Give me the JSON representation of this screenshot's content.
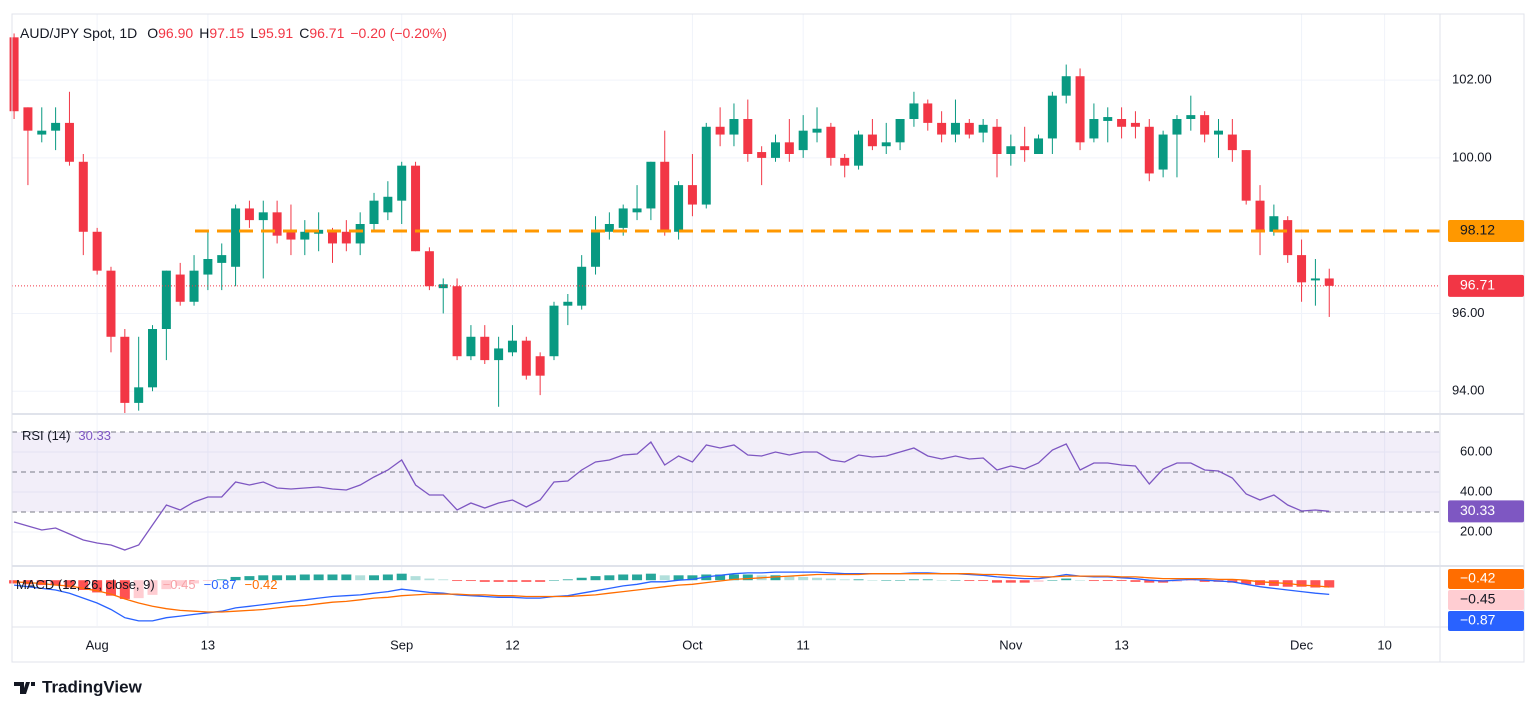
{
  "header": {
    "title": "AUD/JPY Spot, 1D",
    "ohlc": [
      {
        "key": "O",
        "value": "96.90"
      },
      {
        "key": "H",
        "value": "97.15"
      },
      {
        "key": "L",
        "value": "95.91"
      },
      {
        "key": "C",
        "value": "96.71"
      }
    ],
    "change": "−0.20 (−0.20%)"
  },
  "footer": {
    "brand": "TradingView"
  },
  "chart_data": [
    {
      "type": "candlestick",
      "xlim": [
        -0.15,
        103
      ],
      "ylim": [
        93.44,
        103.7
      ],
      "up_color": "#089981",
      "down_color": "#f23645",
      "grid": true,
      "open": [
        103.1,
        101.3,
        100.6,
        100.7,
        100.9,
        99.9,
        98.1,
        97.1,
        95.4,
        93.7,
        94.1,
        95.6,
        97.0,
        96.3,
        97.0,
        97.3,
        97.2,
        98.7,
        98.4,
        98.6,
        98.1,
        97.9,
        98.05,
        98.1,
        98.1,
        97.8,
        98.3,
        98.6,
        98.9,
        99.8,
        97.6,
        96.65,
        96.7,
        94.9,
        95.4,
        94.8,
        95.0,
        95.3,
        94.9,
        94.9,
        96.2,
        96.2,
        97.2,
        98.1,
        98.2,
        98.6,
        98.7,
        99.9,
        98.1,
        99.3,
        98.8,
        100.8,
        100.6,
        101.0,
        100.15,
        100.0,
        100.4,
        100.2,
        100.65,
        100.8,
        100.0,
        99.8,
        100.6,
        100.3,
        100.4,
        101.0,
        101.4,
        100.9,
        100.6,
        100.9,
        100.65,
        100.8,
        100.1,
        100.3,
        100.1,
        100.5,
        101.6,
        102.1,
        100.5,
        100.95,
        101.0,
        100.9,
        100.8,
        99.7,
        100.6,
        101.0,
        101.1,
        100.6,
        100.6,
        100.2,
        98.9,
        98.1,
        98.4,
        97.5,
        96.85,
        96.9
      ],
      "high": [
        103.2,
        101.3,
        101.3,
        101.3,
        101.7,
        100.1,
        98.2,
        97.2,
        95.6,
        95.4,
        95.7,
        97.1,
        97.3,
        97.5,
        98.1,
        97.8,
        98.8,
        98.9,
        98.9,
        98.9,
        98.8,
        98.4,
        98.6,
        98.2,
        98.4,
        98.6,
        99.1,
        99.4,
        99.9,
        99.9,
        97.7,
        96.9,
        96.9,
        95.7,
        95.7,
        95.4,
        95.7,
        95.4,
        95.0,
        96.3,
        96.5,
        97.5,
        98.5,
        98.6,
        98.8,
        99.3,
        99.9,
        100.7,
        99.4,
        100.1,
        100.9,
        101.3,
        101.4,
        101.5,
        100.3,
        100.6,
        101.0,
        101.1,
        101.3,
        100.9,
        100.1,
        100.7,
        101.0,
        100.9,
        101.0,
        101.7,
        101.5,
        101.2,
        101.5,
        101.0,
        101.0,
        101.0,
        100.6,
        100.8,
        100.6,
        101.7,
        102.4,
        102.3,
        101.4,
        101.3,
        101.3,
        101.2,
        101.0,
        100.7,
        101.1,
        101.6,
        101.2,
        101.0,
        101.0,
        100.2,
        99.3,
        98.8,
        98.5,
        97.9,
        97.4,
        97.15
      ],
      "low": [
        101.0,
        99.3,
        100.4,
        100.2,
        99.8,
        97.5,
        97.0,
        95.0,
        93.4,
        93.5,
        94.0,
        94.8,
        96.2,
        96.2,
        96.6,
        96.6,
        96.7,
        98.2,
        96.9,
        97.8,
        97.5,
        97.5,
        97.6,
        97.3,
        97.6,
        97.5,
        98.1,
        98.4,
        98.3,
        97.6,
        96.6,
        96.0,
        94.8,
        94.8,
        94.7,
        93.6,
        94.9,
        94.3,
        93.9,
        94.8,
        95.7,
        96.1,
        97.0,
        97.9,
        98.0,
        98.4,
        98.4,
        98.0,
        97.9,
        98.5,
        98.7,
        100.3,
        100.3,
        99.9,
        99.3,
        99.9,
        99.9,
        100.0,
        100.4,
        99.8,
        99.5,
        99.7,
        100.2,
        100.1,
        100.2,
        100.8,
        100.7,
        100.4,
        100.4,
        100.5,
        100.4,
        99.5,
        99.8,
        99.9,
        100.1,
        100.1,
        101.4,
        100.2,
        100.4,
        100.4,
        100.5,
        100.5,
        99.4,
        99.5,
        99.5,
        100.7,
        100.4,
        100.0,
        99.9,
        98.8,
        97.5,
        98.0,
        97.3,
        96.3,
        96.2,
        95.91
      ],
      "close": [
        101.2,
        100.7,
        100.7,
        100.9,
        99.9,
        98.1,
        97.1,
        95.4,
        93.7,
        94.1,
        95.6,
        97.1,
        96.3,
        97.1,
        97.4,
        97.5,
        98.7,
        98.4,
        98.6,
        98.0,
        97.9,
        98.1,
        98.15,
        97.8,
        97.8,
        98.3,
        98.9,
        99.0,
        99.8,
        97.6,
        96.7,
        96.75,
        94.9,
        95.4,
        94.8,
        95.1,
        95.3,
        94.4,
        94.4,
        96.2,
        96.3,
        97.2,
        98.1,
        98.3,
        98.7,
        98.7,
        99.9,
        98.1,
        99.3,
        98.8,
        100.8,
        100.6,
        101.0,
        100.1,
        100.0,
        100.4,
        100.1,
        100.7,
        100.75,
        100.0,
        99.8,
        100.6,
        100.3,
        100.4,
        101.0,
        101.4,
        100.9,
        100.6,
        100.9,
        100.6,
        100.85,
        100.1,
        100.3,
        100.2,
        100.5,
        101.6,
        102.1,
        100.4,
        101.0,
        101.05,
        100.8,
        100.8,
        99.6,
        100.6,
        101.0,
        101.1,
        100.6,
        100.7,
        100.2,
        98.9,
        98.1,
        98.5,
        97.5,
        96.8,
        96.9,
        96.71
      ],
      "yticks": [
        {
          "value": 94,
          "label": "94.00"
        },
        {
          "value": 96,
          "label": "96.00"
        },
        {
          "value": 100,
          "label": "100.00"
        },
        {
          "value": 102,
          "label": "102.00"
        }
      ],
      "xticks": [
        {
          "value": 6,
          "label": "Aug"
        },
        {
          "value": 14,
          "label": "13"
        },
        {
          "value": 28,
          "label": "Sep"
        },
        {
          "value": 36,
          "label": "12"
        },
        {
          "value": 49,
          "label": "Oct"
        },
        {
          "value": 57,
          "label": "11"
        },
        {
          "value": 72,
          "label": "Nov"
        },
        {
          "value": 80,
          "label": "13"
        },
        {
          "value": 93,
          "label": "Dec"
        },
        {
          "value": 99,
          "label": "10"
        }
      ],
      "level_line": {
        "value": 98.12,
        "label": "98.12",
        "color": "#ff9800"
      },
      "last_price": {
        "value": 96.71,
        "label": "96.71"
      }
    },
    {
      "type": "line",
      "name": "RSI (14)",
      "color": "#7e57c2",
      "ylim": [
        3.5,
        78.5
      ],
      "values": [
        25,
        23,
        21,
        22,
        19,
        16,
        14.5,
        13.5,
        11,
        13.5,
        23.5,
        33.5,
        31,
        35,
        37.5,
        37.5,
        45,
        43.5,
        45,
        42,
        41.5,
        42,
        42.5,
        41.5,
        41,
        43.5,
        47.5,
        51,
        56,
        43.5,
        38.5,
        38.5,
        31,
        34.5,
        32,
        34.5,
        36,
        32.5,
        36,
        45,
        45.5,
        51,
        55,
        56,
        58.5,
        59,
        65,
        53.5,
        58,
        55,
        63.5,
        62,
        63.5,
        58.5,
        58,
        60,
        58.5,
        60,
        60,
        56,
        55,
        58.5,
        57.5,
        58,
        60,
        62,
        58,
        56.5,
        58,
        56.5,
        57,
        51,
        53,
        51.5,
        54.5,
        61,
        64,
        51,
        54.5,
        54.5,
        53.5,
        53,
        44,
        51.5,
        54.5,
        54.5,
        51,
        50.5,
        47,
        39,
        36,
        38.5,
        33.5,
        30.5,
        31,
        30.33
      ],
      "value_label": "30.33",
      "yticks": [
        {
          "value": 20,
          "label": "20.00"
        },
        {
          "value": 40,
          "label": "40.00"
        },
        {
          "value": 60,
          "label": "60.00"
        }
      ],
      "levels": [
        70,
        50,
        30
      ],
      "band": [
        30,
        70
      ]
    },
    {
      "type": "macd",
      "name": "MACD (12, 26, close, 9)",
      "ylim": [
        -2.81,
        0.81
      ],
      "colors": {
        "macd": "#2962ff",
        "signal": "#ff6d00",
        "up": "#26a69a",
        "up_light": "#b2dfdb",
        "down": "#ff5252",
        "down_light": "#ffcdd2"
      },
      "histogram": [
        -0.2,
        -0.25,
        -0.3,
        -0.3,
        -0.45,
        -0.6,
        -0.75,
        -0.95,
        -1.15,
        -1.1,
        -0.9,
        -0.55,
        -0.35,
        -0.2,
        -0.05,
        0.05,
        0.2,
        0.25,
        0.3,
        0.3,
        0.3,
        0.35,
        0.35,
        0.35,
        0.35,
        0.3,
        0.3,
        0.35,
        0.4,
        0.25,
        0.1,
        0.05,
        -0.05,
        -0.05,
        -0.1,
        -0.1,
        -0.1,
        -0.1,
        -0.1,
        0,
        0.05,
        0.15,
        0.25,
        0.3,
        0.35,
        0.35,
        0.4,
        0.3,
        0.3,
        0.3,
        0.35,
        0.35,
        0.35,
        0.35,
        0.3,
        0.3,
        0.25,
        0.2,
        0.15,
        0.1,
        0.05,
        0.05,
        0,
        0,
        0,
        0.05,
        0.05,
        0,
        0,
        -0.05,
        -0.05,
        -0.15,
        -0.15,
        -0.15,
        -0.1,
        0,
        0.1,
        0,
        -0.05,
        -0.05,
        -0.05,
        -0.1,
        -0.15,
        -0.15,
        -0.1,
        -0.05,
        -0.1,
        -0.1,
        -0.15,
        -0.25,
        -0.3,
        -0.35,
        -0.4,
        -0.4,
        -0.45,
        -0.45
      ],
      "macd": [
        -0.3,
        -0.4,
        -0.5,
        -0.6,
        -0.8,
        -1.1,
        -1.4,
        -1.8,
        -2.3,
        -2.5,
        -2.5,
        -2.3,
        -2.2,
        -2.1,
        -2.0,
        -1.9,
        -1.7,
        -1.6,
        -1.5,
        -1.4,
        -1.3,
        -1.2,
        -1.1,
        -1.0,
        -0.95,
        -0.9,
        -0.8,
        -0.7,
        -0.55,
        -0.65,
        -0.75,
        -0.8,
        -0.9,
        -0.95,
        -1.0,
        -1.05,
        -1.05,
        -1.1,
        -1.1,
        -1.0,
        -0.95,
        -0.8,
        -0.65,
        -0.5,
        -0.35,
        -0.25,
        -0.1,
        -0.1,
        0.0,
        0.05,
        0.2,
        0.3,
        0.4,
        0.45,
        0.45,
        0.5,
        0.5,
        0.5,
        0.5,
        0.45,
        0.4,
        0.4,
        0.4,
        0.4,
        0.4,
        0.45,
        0.45,
        0.4,
        0.4,
        0.35,
        0.3,
        0.2,
        0.15,
        0.1,
        0.1,
        0.2,
        0.35,
        0.25,
        0.2,
        0.2,
        0.15,
        0.1,
        0.0,
        -0.05,
        0.0,
        0.05,
        0.0,
        -0.05,
        -0.1,
        -0.25,
        -0.4,
        -0.5,
        -0.6,
        -0.7,
        -0.8,
        -0.87
      ],
      "signal": [
        -0.1,
        -0.15,
        -0.2,
        -0.3,
        -0.35,
        -0.5,
        -0.65,
        -0.85,
        -1.15,
        -1.4,
        -1.6,
        -1.75,
        -1.85,
        -1.9,
        -1.95,
        -1.95,
        -1.9,
        -1.85,
        -1.8,
        -1.7,
        -1.6,
        -1.55,
        -1.45,
        -1.35,
        -1.3,
        -1.2,
        -1.1,
        -1.05,
        -0.95,
        -0.9,
        -0.85,
        -0.85,
        -0.85,
        -0.9,
        -0.9,
        -0.95,
        -0.95,
        -1.0,
        -1.0,
        -1.0,
        -1.0,
        -0.95,
        -0.9,
        -0.8,
        -0.7,
        -0.6,
        -0.5,
        -0.4,
        -0.3,
        -0.25,
        -0.15,
        -0.05,
        0.05,
        0.1,
        0.15,
        0.2,
        0.25,
        0.3,
        0.35,
        0.35,
        0.35,
        0.35,
        0.4,
        0.4,
        0.4,
        0.4,
        0.4,
        0.4,
        0.4,
        0.4,
        0.35,
        0.35,
        0.3,
        0.25,
        0.2,
        0.2,
        0.25,
        0.25,
        0.25,
        0.25,
        0.2,
        0.2,
        0.15,
        0.1,
        0.1,
        0.1,
        0.1,
        0.05,
        0.05,
        0.0,
        -0.1,
        -0.15,
        -0.2,
        -0.3,
        -0.35,
        -0.42
      ],
      "value_labels": {
        "histogram": "−0.45",
        "macd": "−0.87",
        "signal": "−0.42"
      }
    }
  ]
}
